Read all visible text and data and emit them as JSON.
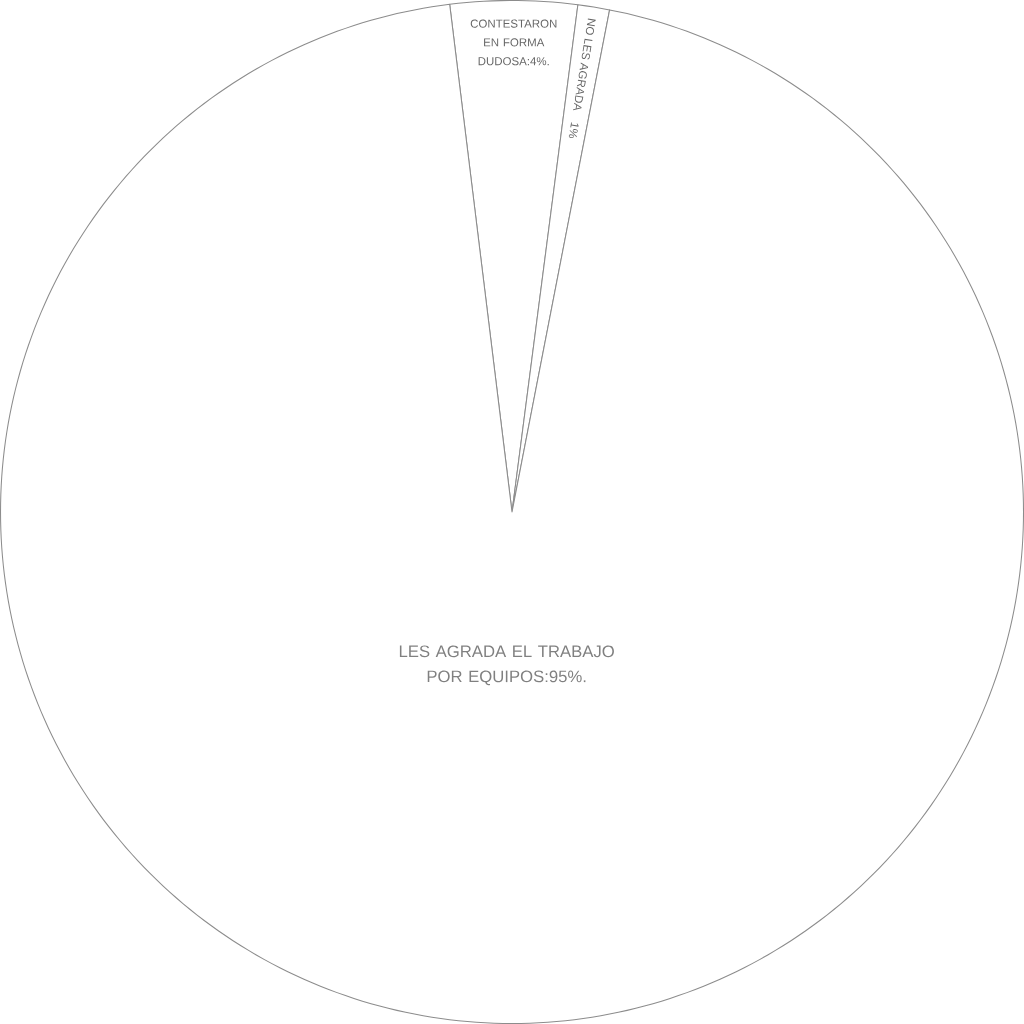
{
  "chart_data": {
    "type": "pie",
    "categories": [
      "CONTESTARON EN FORMA DUDOSA",
      "NO LES AGRADA",
      "LES AGRADA EL TRABAJO POR EQUIPOS"
    ],
    "values": [
      4,
      1,
      95
    ],
    "value_labels": [
      ":4%.",
      "1%",
      ":95%."
    ],
    "colors": [
      "#ffffff",
      "#ffffff",
      "#ffffff"
    ]
  }
}
